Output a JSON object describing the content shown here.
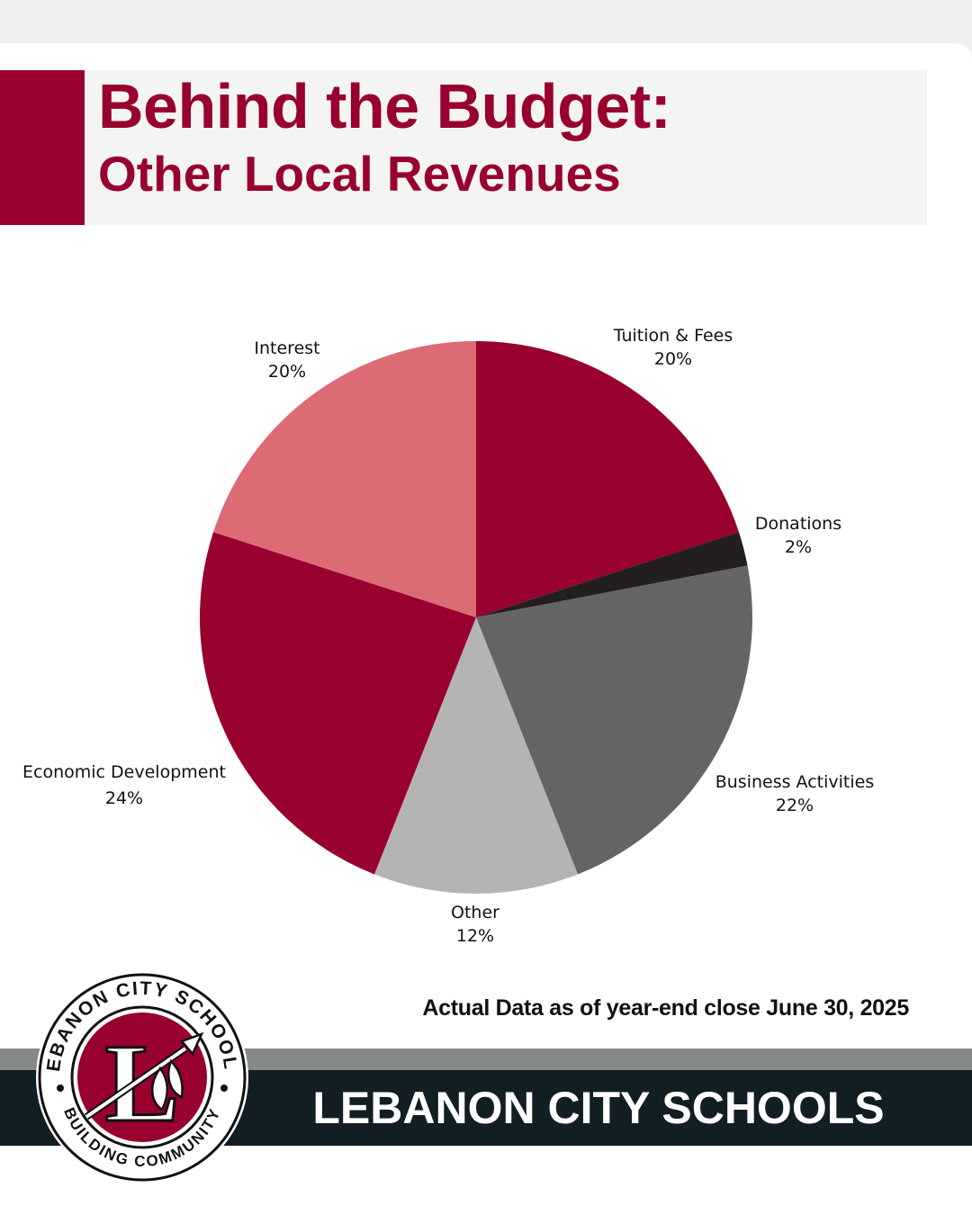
{
  "header": {
    "title": "Behind the Budget:",
    "subtitle": "Other Local Revenues"
  },
  "chart_data": {
    "type": "pie",
    "title": "",
    "slices": [
      {
        "name": "Tuition & Fees",
        "value": 20,
        "label": "20%",
        "color": "#98002e"
      },
      {
        "name": "Donations",
        "value": 2,
        "label": "2%",
        "color": "#231f20"
      },
      {
        "name": "Business Activities",
        "value": 22,
        "label": "22%",
        "color": "#656465"
      },
      {
        "name": "Other",
        "value": 12,
        "label": "12%",
        "color": "#b5b4b5"
      },
      {
        "name": "Economic Development",
        "value": 24,
        "label": "24%",
        "color": "#98002e"
      },
      {
        "name": "Interest",
        "value": 20,
        "label": "20%",
        "color": "#dc6b75"
      }
    ],
    "start": "12 o'clock",
    "direction": "clockwise"
  },
  "footnote": "Actual Data as of year-end close June 30, 2025",
  "footer": {
    "name": "LEBANON CITY SCHOOLS"
  },
  "logo": {
    "top_text": "LEBANON CITY SCHOOLS",
    "bottom_text": "BUILDING COMMUNITY",
    "letter": "L",
    "icon": "spear-feather-icon",
    "color": "#98002e"
  }
}
